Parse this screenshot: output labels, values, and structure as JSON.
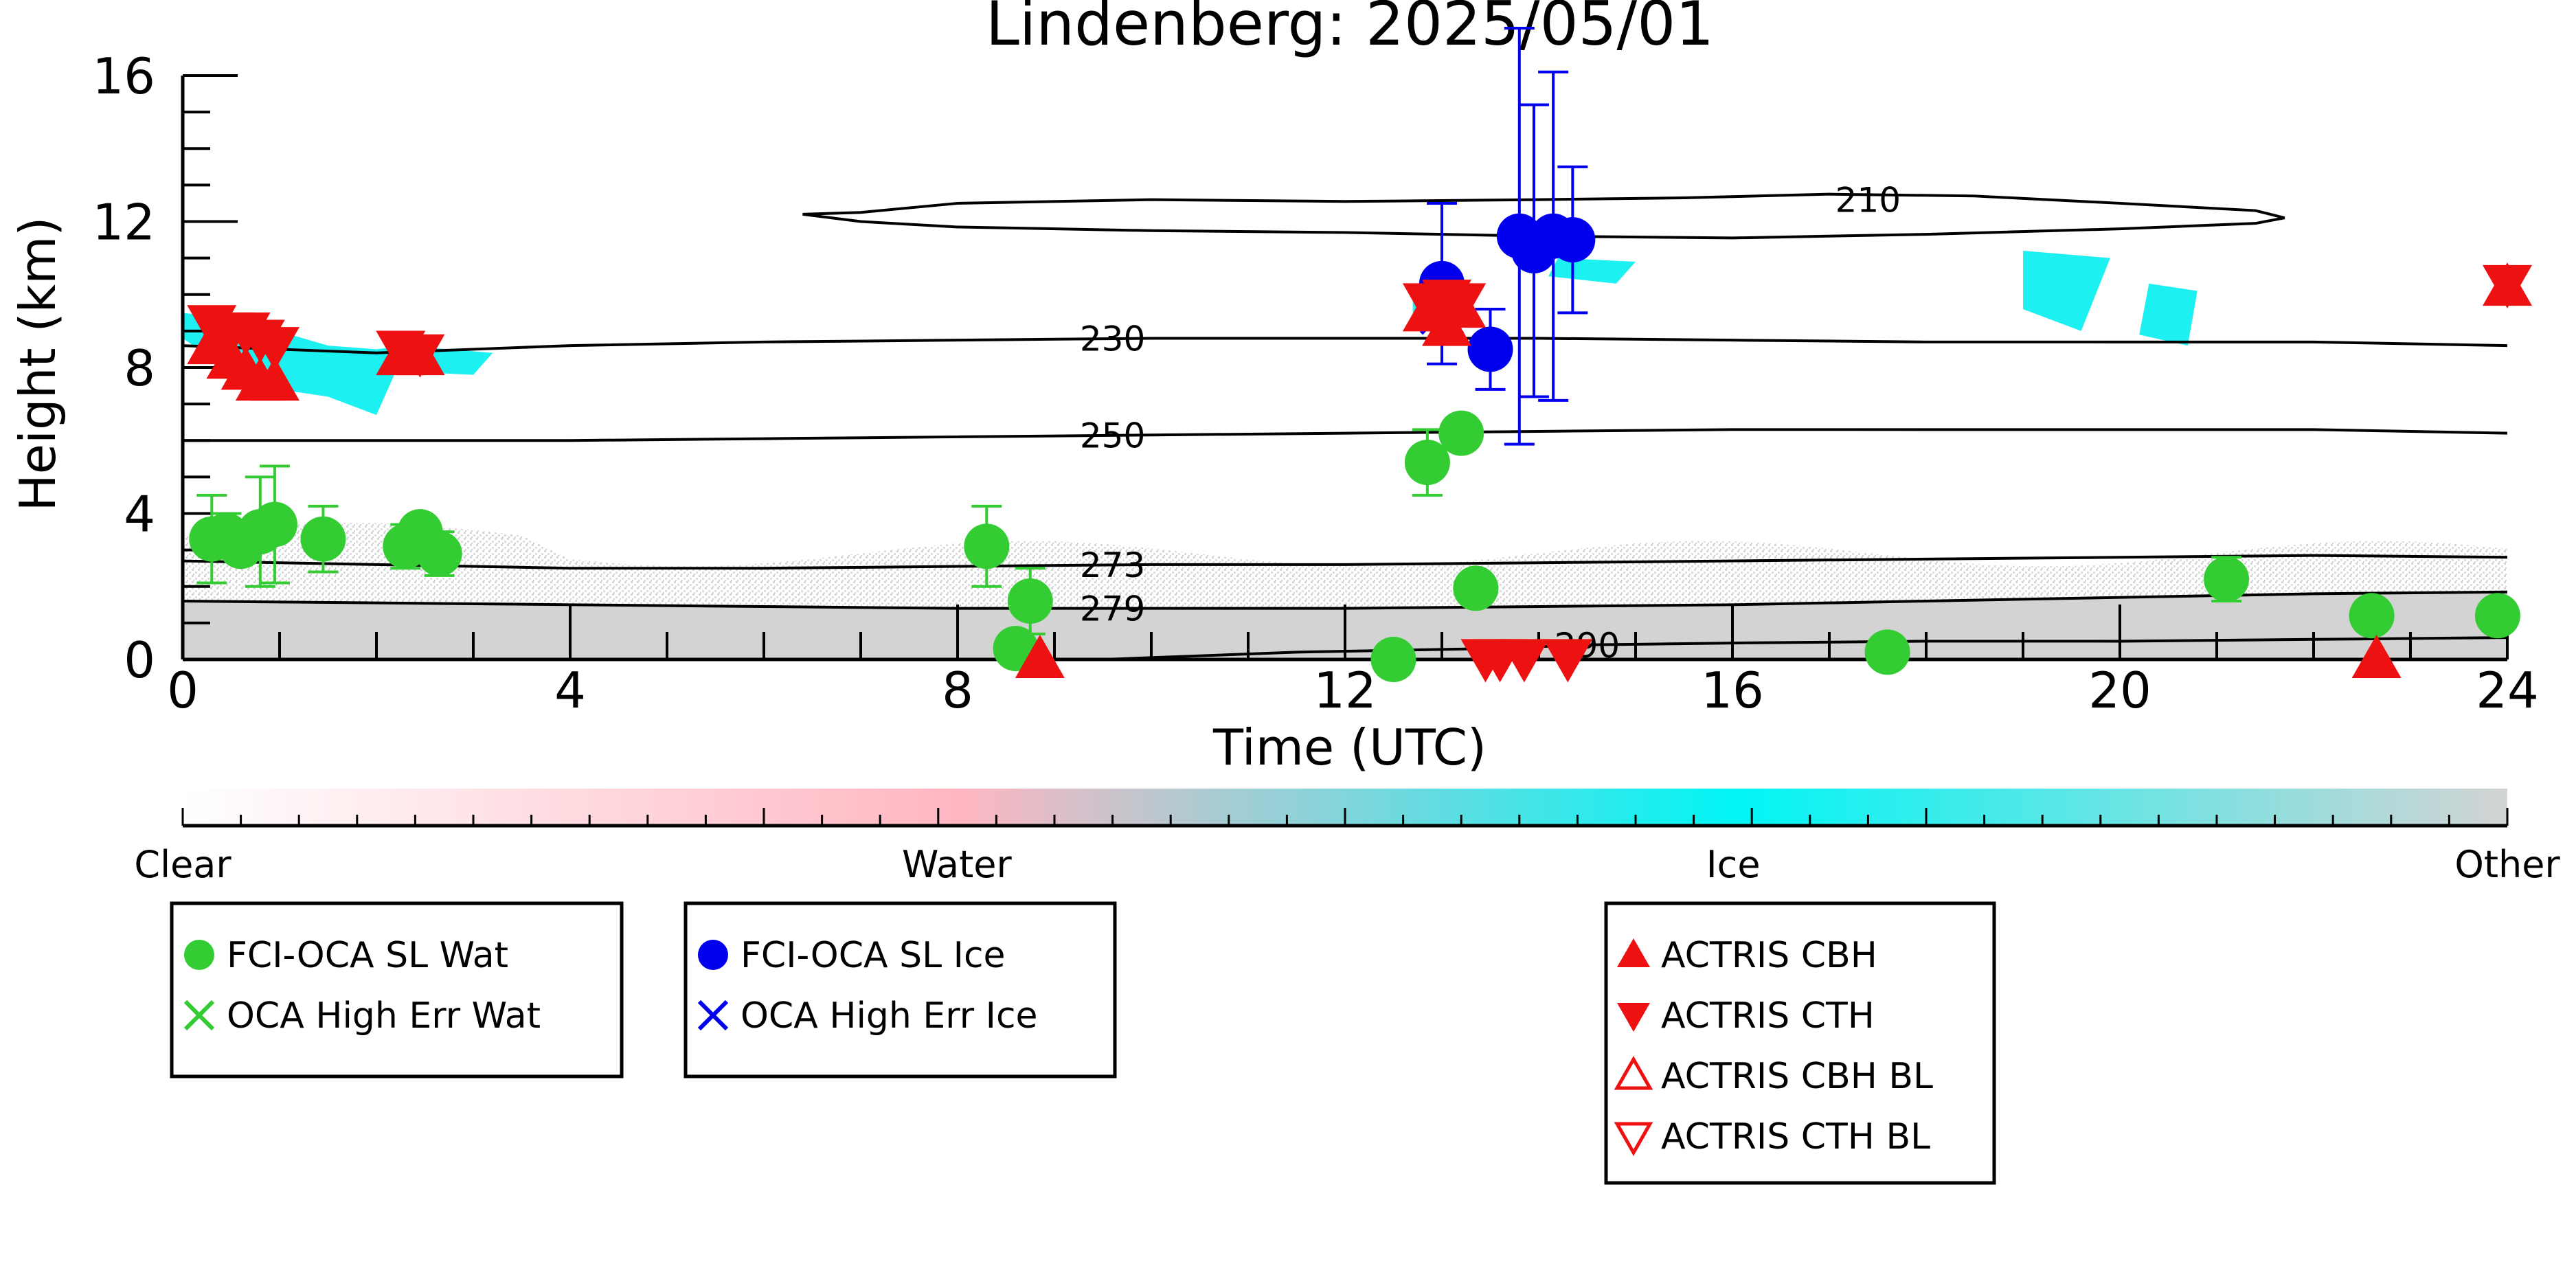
{
  "chart_data": {
    "type": "scatter",
    "title": "Lindenberg: 2025/05/01",
    "xlabel": "Time (UTC)",
    "ylabel": "Height (km)",
    "xlim": [
      0,
      24
    ],
    "ylim": [
      0,
      16
    ],
    "x_ticks": [
      "0",
      "4",
      "8",
      "12",
      "16",
      "20",
      "24"
    ],
    "y_ticks": [
      "0",
      "4",
      "8",
      "12",
      "16"
    ],
    "colors": {
      "water": "#33cc33",
      "ice": "#0000ee",
      "actris": "#ee1111",
      "ice_mask": "#1cf0f0",
      "other_mask": "#d3d3d3",
      "contour": "#000000"
    },
    "contours": [
      {
        "label": "210",
        "x": [
          6.4,
          7.0,
          8.0,
          10.0,
          12.0,
          14.0,
          15.5,
          17.0,
          18.5,
          20.0,
          21.4,
          21.7,
          21.4,
          20.0,
          18.0,
          16.0,
          14.0,
          12.0,
          10.0,
          8.0,
          7.0,
          6.4
        ],
        "y": [
          12.2,
          12.25,
          12.5,
          12.6,
          12.55,
          12.6,
          12.65,
          12.75,
          12.7,
          12.5,
          12.3,
          12.1,
          11.95,
          11.8,
          11.65,
          11.55,
          11.6,
          11.7,
          11.75,
          11.85,
          12.0,
          12.2
        ]
      },
      {
        "label": "230",
        "x": [
          0.0,
          1.0,
          2.0,
          3.0,
          4.0,
          6.0,
          8.0,
          10.0,
          12.0,
          14.0,
          16.0,
          18.0,
          20.0,
          22.0,
          24.0
        ],
        "y": [
          8.6,
          8.5,
          8.4,
          8.5,
          8.6,
          8.7,
          8.75,
          8.8,
          8.8,
          8.8,
          8.75,
          8.7,
          8.7,
          8.7,
          8.6
        ]
      },
      {
        "label": "250",
        "x": [
          0.0,
          2.0,
          4.0,
          6.0,
          8.0,
          10.0,
          12.0,
          14.0,
          16.0,
          18.0,
          20.0,
          22.0,
          24.0
        ],
        "y": [
          6.0,
          6.0,
          6.0,
          6.05,
          6.1,
          6.15,
          6.2,
          6.25,
          6.3,
          6.3,
          6.3,
          6.3,
          6.2
        ]
      },
      {
        "label": "273",
        "x": [
          0.0,
          2.0,
          4.0,
          6.0,
          8.0,
          10.0,
          12.0,
          14.0,
          16.0,
          18.0,
          20.0,
          22.0,
          24.0
        ],
        "y": [
          2.7,
          2.6,
          2.5,
          2.5,
          2.55,
          2.6,
          2.6,
          2.65,
          2.7,
          2.75,
          2.8,
          2.85,
          2.8
        ]
      },
      {
        "label": "279",
        "x": [
          0.0,
          2.0,
          4.0,
          6.0,
          8.0,
          10.0,
          12.0,
          14.0,
          16.0,
          18.0,
          20.0,
          22.0,
          24.0
        ],
        "y": [
          1.6,
          1.55,
          1.5,
          1.45,
          1.4,
          1.4,
          1.4,
          1.45,
          1.5,
          1.6,
          1.7,
          1.8,
          1.85
        ]
      },
      {
        "label": "290",
        "x": [
          9.5,
          10.5,
          11.5,
          12.5,
          13.5,
          14.5,
          16.0,
          18.0,
          20.0,
          22.0,
          24.0
        ],
        "y": [
          0.0,
          0.1,
          0.2,
          0.25,
          0.3,
          0.4,
          0.45,
          0.5,
          0.5,
          0.55,
          0.6
        ]
      }
    ],
    "series": [
      {
        "name": "FCI-OCA SL Wat",
        "marker": "circle",
        "color": "#33cc33",
        "points": [
          {
            "x": 0.3,
            "y": 3.3,
            "err": 1.2
          },
          {
            "x": 0.45,
            "y": 3.4,
            "err": 0.6
          },
          {
            "x": 0.6,
            "y": 3.1,
            "err": 0.4
          },
          {
            "x": 0.8,
            "y": 3.5,
            "err": 1.5
          },
          {
            "x": 0.95,
            "y": 3.7,
            "err": 1.6
          },
          {
            "x": 1.45,
            "y": 3.3,
            "err": 0.9
          },
          {
            "x": 2.3,
            "y": 3.1,
            "err": 0.6
          },
          {
            "x": 2.45,
            "y": 3.5,
            "err": 0.3
          },
          {
            "x": 2.65,
            "y": 2.9,
            "err": 0.6
          },
          {
            "x": 8.3,
            "y": 3.1,
            "err": 1.1
          },
          {
            "x": 8.75,
            "y": 1.6,
            "err": 0.9
          },
          {
            "x": 8.6,
            "y": 0.3,
            "err": 0.4
          },
          {
            "x": 12.85,
            "y": 5.4,
            "err": 0.9
          },
          {
            "x": 13.2,
            "y": 6.2,
            "err": 0.1
          },
          {
            "x": 13.35,
            "y": 1.95,
            "err": 0.2
          },
          {
            "x": 12.5,
            "y": 0.0,
            "err": 0.05
          },
          {
            "x": 17.6,
            "y": 0.2,
            "err": 0.1
          },
          {
            "x": 21.1,
            "y": 2.2,
            "err": 0.6
          },
          {
            "x": 22.6,
            "y": 1.2,
            "err": 0.1
          },
          {
            "x": 23.9,
            "y": 1.2,
            "err": 0.1
          }
        ]
      },
      {
        "name": "FCI-OCA SL Ice",
        "marker": "circle",
        "color": "#0000ee",
        "points": [
          {
            "x": 13.0,
            "y": 10.3,
            "err": 2.2
          },
          {
            "x": 13.5,
            "y": 8.5,
            "err": 1.1
          },
          {
            "x": 13.8,
            "y": 11.6,
            "err": 5.7
          },
          {
            "x": 13.95,
            "y": 11.2,
            "err": 4.0
          },
          {
            "x": 14.15,
            "y": 11.6,
            "err": 4.5
          },
          {
            "x": 14.35,
            "y": 11.5,
            "err": 2.0
          }
        ]
      },
      {
        "name": "OCA High Err Wat",
        "marker": "x",
        "color": "#33cc33",
        "points": []
      },
      {
        "name": "OCA High Err Ice",
        "marker": "x",
        "color": "#0000ee",
        "points": [
          {
            "x": 13.0,
            "y": 9.5
          }
        ]
      },
      {
        "name": "ACTRIS CBH",
        "marker": "triangle-up",
        "color": "#ee1111",
        "points": [
          {
            "x": 0.3,
            "y": 8.6
          },
          {
            "x": 0.5,
            "y": 8.2
          },
          {
            "x": 0.65,
            "y": 7.9
          },
          {
            "x": 0.8,
            "y": 7.6
          },
          {
            "x": 0.95,
            "y": 7.6
          },
          {
            "x": 2.25,
            "y": 8.3
          },
          {
            "x": 2.45,
            "y": 8.3
          },
          {
            "x": 12.85,
            "y": 9.5
          },
          {
            "x": 13.05,
            "y": 9.1
          },
          {
            "x": 13.2,
            "y": 9.6
          },
          {
            "x": 24.0,
            "y": 10.2
          },
          {
            "x": 8.85,
            "y": 0.0
          },
          {
            "x": 22.65,
            "y": 0.0
          }
        ]
      },
      {
        "name": "ACTRIS CTH",
        "marker": "triangle-down",
        "color": "#ee1111",
        "points": [
          {
            "x": 0.3,
            "y": 9.2
          },
          {
            "x": 0.5,
            "y": 9.0
          },
          {
            "x": 0.65,
            "y": 9.0
          },
          {
            "x": 0.8,
            "y": 8.8
          },
          {
            "x": 0.95,
            "y": 8.6
          },
          {
            "x": 2.25,
            "y": 8.5
          },
          {
            "x": 2.45,
            "y": 8.4
          },
          {
            "x": 12.85,
            "y": 9.8
          },
          {
            "x": 13.05,
            "y": 9.9
          },
          {
            "x": 13.2,
            "y": 9.8
          },
          {
            "x": 24.0,
            "y": 10.3
          },
          {
            "x": 13.45,
            "y": 0.05
          },
          {
            "x": 13.6,
            "y": 0.05
          },
          {
            "x": 13.85,
            "y": 0.05
          },
          {
            "x": 14.3,
            "y": 0.05
          }
        ]
      },
      {
        "name": "ACTRIS CBH BL",
        "marker": "triangle-up-open",
        "color": "#ee1111",
        "points": []
      },
      {
        "name": "ACTRIS CTH BL",
        "marker": "triangle-down-open",
        "color": "#ee1111",
        "points": []
      }
    ],
    "ice_mask": [
      {
        "x": [
          0.0,
          0.6,
          1.5,
          2.0,
          2.3,
          3.2,
          3.0,
          2.2,
          2.0,
          1.5,
          1.0,
          0.5,
          0.0
        ],
        "y": [
          9.5,
          9.3,
          8.6,
          8.5,
          8.6,
          8.4,
          7.8,
          7.9,
          6.7,
          7.2,
          7.4,
          7.9,
          8.8
        ]
      },
      {
        "x": [
          12.7,
          13.3,
          13.2,
          12.7
        ],
        "y": [
          10.0,
          10.0,
          9.0,
          9.0
        ]
      },
      {
        "x": [
          14.2,
          15.0,
          14.8,
          14.1
        ],
        "y": [
          11.0,
          10.9,
          10.3,
          10.5
        ]
      },
      {
        "x": [
          19.0,
          19.9,
          19.6,
          19.0
        ],
        "y": [
          11.2,
          11.0,
          9.0,
          9.6
        ]
      },
      {
        "x": [
          20.3,
          20.8,
          20.7,
          20.2
        ],
        "y": [
          10.3,
          10.1,
          8.6,
          8.9
        ]
      }
    ],
    "colorbar": {
      "labels": [
        "Clear",
        "Water",
        "Ice",
        "Other"
      ],
      "positions": [
        0.0,
        0.333,
        0.667,
        1.0
      ],
      "colors": [
        "#ffffff",
        "#ffb6c1",
        "#00f5f5",
        "#d3d3d3"
      ]
    },
    "legends": [
      [
        "FCI-OCA SL Wat",
        "OCA High Err Wat"
      ],
      [
        "FCI-OCA SL Ice",
        "OCA High Err Ice"
      ],
      [
        "ACTRIS CBH",
        "ACTRIS CTH",
        "ACTRIS CBH BL",
        "ACTRIS CTH BL"
      ]
    ]
  }
}
